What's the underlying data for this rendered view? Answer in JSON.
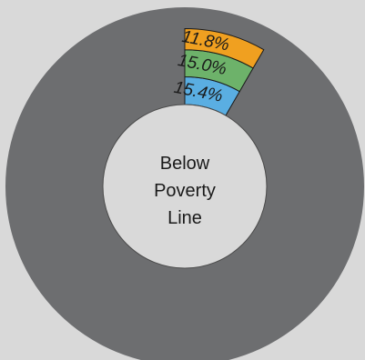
{
  "chart_data": {
    "type": "pie",
    "variant": "donut-radial-bars",
    "title": "",
    "center_label_lines": [
      "Below",
      "Poverty",
      "Line"
    ],
    "background": "#d9d9d9",
    "ring_color": "#6d6e70",
    "hole_color": "#d9d9d9",
    "series": [
      {
        "value": 15.4,
        "label": "15.4%",
        "color": "#5aaee2"
      },
      {
        "value": 15.0,
        "label": "15.0%",
        "color": "#6db26a"
      },
      {
        "value": 11.8,
        "label": "11.8%",
        "color": "#f0a020"
      }
    ],
    "sector_angle_deg": 30,
    "sector_start_deg": 0,
    "grid": false,
    "legend": "none"
  }
}
